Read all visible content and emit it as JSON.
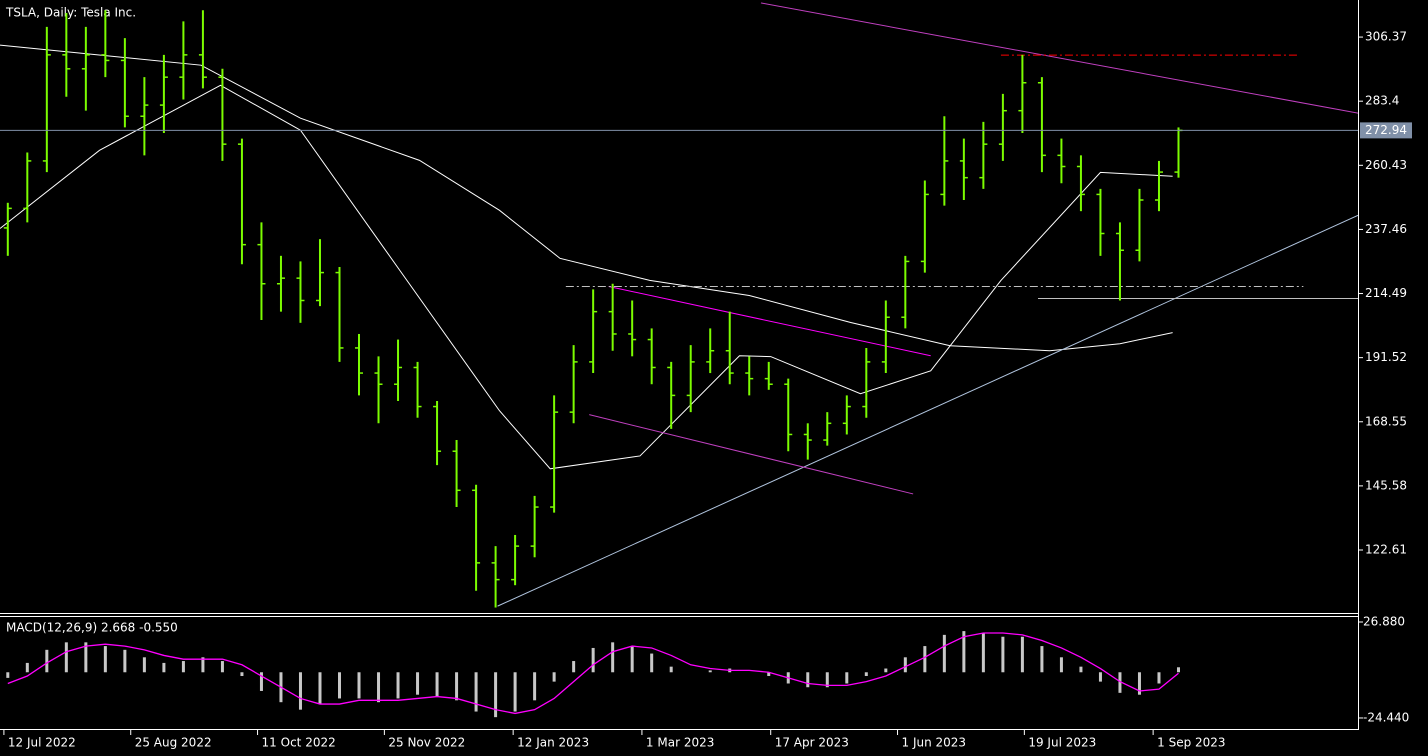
{
  "chart_data": [
    {
      "type": "ohlc",
      "title": "TSLA, Daily:  Tesla Inc.",
      "color": "#7cfc00",
      "x": [
        0,
        1,
        2,
        3,
        4,
        5,
        6,
        7,
        8,
        9,
        10,
        11,
        12,
        13,
        14,
        15,
        16,
        17,
        18,
        19,
        20,
        21,
        22,
        23,
        24,
        25,
        26,
        27,
        28,
        29,
        30,
        31,
        32,
        33,
        34,
        35,
        36,
        37,
        38,
        39,
        40,
        41,
        42,
        43,
        44,
        45,
        46,
        47,
        48,
        49,
        50,
        51,
        52,
        53,
        54,
        55,
        56,
        57,
        58,
        59,
        60
      ],
      "open": [
        238,
        245,
        262,
        300,
        295,
        300,
        298,
        278,
        282,
        292,
        300,
        292,
        268,
        232,
        218,
        220,
        212,
        222,
        195,
        186,
        182,
        188,
        174,
        158,
        144,
        118,
        112,
        124,
        138,
        172,
        190,
        208,
        200,
        198,
        188,
        178,
        190,
        194,
        186,
        184,
        182,
        164,
        162,
        168,
        174,
        190,
        206,
        226,
        250,
        262,
        256,
        268,
        280,
        290,
        264,
        260,
        250,
        236,
        230,
        248,
        258
      ],
      "high": [
        247,
        265,
        310,
        315,
        310,
        316,
        306,
        292,
        300,
        312,
        316,
        295,
        270,
        240,
        228,
        226,
        234,
        224,
        200,
        192,
        198,
        190,
        176,
        162,
        146,
        124,
        128,
        142,
        178,
        196,
        216,
        218,
        212,
        202,
        190,
        196,
        202,
        208,
        192,
        190,
        184,
        168,
        172,
        178,
        195,
        212,
        228,
        255,
        278,
        270,
        276,
        286,
        300,
        292,
        270,
        264,
        252,
        240,
        252,
        262,
        274
      ],
      "low": [
        228,
        240,
        258,
        285,
        280,
        292,
        274,
        264,
        272,
        284,
        288,
        262,
        225,
        205,
        208,
        204,
        210,
        190,
        178,
        168,
        176,
        170,
        153,
        138,
        108,
        102,
        110,
        120,
        136,
        168,
        186,
        194,
        192,
        182,
        166,
        172,
        186,
        182,
        178,
        180,
        158,
        155,
        160,
        164,
        170,
        186,
        202,
        222,
        246,
        248,
        252,
        262,
        272,
        258,
        254,
        244,
        228,
        212,
        226,
        244,
        256
      ],
      "close": [
        245,
        262,
        300,
        295,
        300,
        298,
        278,
        282,
        292,
        300,
        292,
        268,
        232,
        218,
        220,
        212,
        222,
        195,
        186,
        182,
        188,
        174,
        158,
        144,
        118,
        112,
        124,
        138,
        172,
        190,
        208,
        200,
        198,
        188,
        178,
        190,
        194,
        186,
        184,
        182,
        164,
        162,
        168,
        174,
        190,
        206,
        226,
        250,
        262,
        256,
        268,
        280,
        290,
        264,
        260,
        250,
        236,
        230,
        248,
        258,
        272.94
      ],
      "last_price": 272.94,
      "ylim": [
        100.4,
        319.65
      ],
      "yticks": [
        306.37,
        283.4,
        260.43,
        237.46,
        214.49,
        191.52,
        168.55,
        145.58,
        122.61
      ],
      "xlim": [
        -0.4,
        69.2
      ],
      "xticks": [
        {
          "value": -0.2,
          "label": "12 Jul 2022"
        },
        {
          "value": 6.3,
          "label": "25 Aug 2022"
        },
        {
          "value": 12.8,
          "label": "11 Oct 2022"
        },
        {
          "value": 19.3,
          "label": "25 Nov 2022"
        },
        {
          "value": 25.9,
          "label": "12 Jan 2023"
        },
        {
          "value": 32.5,
          "label": "1 Mar 2023"
        },
        {
          "value": 39.1,
          "label": "17 Apr 2023"
        },
        {
          "value": 45.6,
          "label": "1 Jun 2023"
        },
        {
          "value": 52.1,
          "label": "19 Jul 2023"
        },
        {
          "value": 58.7,
          "label": "1 Sep 2023"
        }
      ],
      "overlays": [
        {
          "color": "#ffffff",
          "x": [
            -0.4,
            4.7,
            10.9,
            15,
            20.1,
            25.2,
            27.8,
            32.4,
            37.5,
            39.1,
            43.7,
            47.3,
            50.9,
            56,
            59.7
          ],
          "values": [
            237.8,
            265.8,
            289.1,
            273.0,
            222.7,
            172.5,
            151.7,
            156.3,
            192.2,
            191.9,
            178.6,
            186.8,
            219.2,
            257.9,
            256.5
          ]
        },
        {
          "color": "#ffffff",
          "x": [
            -0.4,
            9.9,
            15,
            21.1,
            25.2,
            28.3,
            32.9,
            38,
            43.2,
            48.3,
            53.4,
            57,
            59.7
          ],
          "values": [
            303.5,
            296.3,
            277.3,
            262.2,
            244.3,
            227.1,
            219.2,
            213.8,
            204.1,
            195.8,
            194.0,
            196.5,
            200.5
          ]
        }
      ],
      "trendlines": [
        {
          "color": "#c040c0",
          "style": "solid",
          "x": [
            38.6,
            69.2
          ],
          "values": [
            318.6,
            279.1
          ]
        },
        {
          "color": "#b0c4de",
          "style": "solid",
          "x": [
            25.1,
            69.2
          ],
          "values": [
            102.5,
            242.5
          ]
        },
        {
          "color": "#ff00ff",
          "style": "solid",
          "x": [
            30.8,
            47.3
          ],
          "values": [
            217.0,
            192.2
          ]
        },
        {
          "color": "#c040c0",
          "style": "solid",
          "x": [
            29.8,
            46.4
          ],
          "values": [
            171.1,
            142.7
          ]
        },
        {
          "color": "#c0c0c0",
          "style": "dashdot",
          "x": [
            28.6,
            66.4
          ],
          "values": [
            217.0,
            217.0
          ]
        },
        {
          "color": "#ff0000",
          "style": "dashdot",
          "x": [
            50.9,
            66.2
          ],
          "values": [
            299.9,
            299.9
          ]
        },
        {
          "color": "#c0c0c0",
          "style": "solid",
          "x": [
            52.8,
            69.2
          ],
          "values": [
            212.7,
            212.7
          ]
        }
      ]
    },
    {
      "type": "macd",
      "title": "MACD(12,26,9) 2.668 -0.550",
      "ylim": [
        -29.8,
        29.55
      ],
      "yticks": [
        {
          "value": 26.88,
          "label": "26.880"
        },
        {
          "value": -24.44,
          "label": "-24.440"
        }
      ],
      "series": [
        {
          "color": "#c8c8c8",
          "values": [
            -3,
            5,
            12,
            16,
            16,
            14,
            12,
            8,
            5,
            6,
            8,
            6,
            -2,
            -10,
            -16,
            -20,
            -17,
            -14,
            -14,
            -16,
            -14,
            -12,
            -13,
            -15,
            -21,
            -24,
            -21,
            -15,
            -5,
            6,
            13,
            16,
            14,
            10,
            3,
            0,
            1,
            2,
            0,
            -2,
            -6,
            -8,
            -8,
            -6,
            -2,
            2,
            8,
            14,
            20,
            22,
            21,
            19,
            19,
            14,
            8,
            3,
            -5,
            -11,
            -12,
            -6,
            2.668
          ]
        },
        {
          "color": "#ff00ff",
          "values": [
            -6,
            -2,
            5,
            11,
            14,
            15,
            14,
            12,
            9,
            7,
            7,
            7,
            4,
            -2,
            -8,
            -14,
            -17,
            -17,
            -15,
            -15,
            -15,
            -14,
            -13,
            -14,
            -17,
            -20,
            -22,
            -20,
            -14,
            -5,
            4,
            11,
            14,
            13,
            9,
            4,
            2,
            1,
            1,
            0,
            -3,
            -6,
            -7,
            -7,
            -5,
            -2,
            3,
            8,
            14,
            19,
            21,
            21,
            20,
            17,
            13,
            8,
            2,
            -5,
            -10,
            -9,
            -0.55
          ]
        }
      ]
    }
  ]
}
